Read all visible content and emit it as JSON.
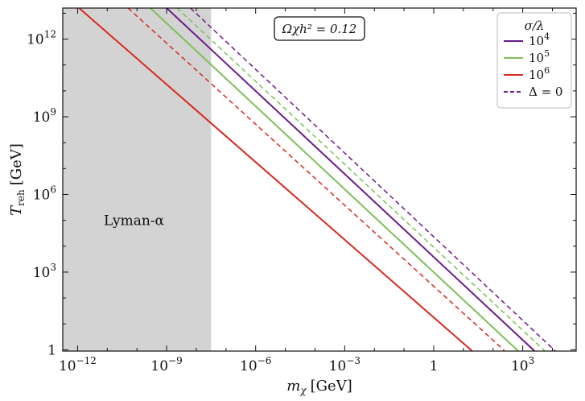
{
  "chart_data": {
    "type": "line",
    "title": "",
    "xlabel": {
      "base": "m",
      "sub": "χ",
      "unit": "[GeV]"
    },
    "ylabel": {
      "base": "T",
      "sub": "reh",
      "unit": "[GeV]"
    },
    "xscale": "log",
    "yscale": "log",
    "xlim_log10": [
      -12.5,
      4.8
    ],
    "ylim_log10": [
      -0.05,
      13.2
    ],
    "x_ticks": [
      {
        "exp": -12,
        "label": "10",
        "sup": "−12"
      },
      {
        "exp": -9,
        "label": "10",
        "sup": "−9"
      },
      {
        "exp": -6,
        "label": "10",
        "sup": "−6"
      },
      {
        "exp": -3,
        "label": "10",
        "sup": "−3"
      },
      {
        "exp": 0,
        "label": "1",
        "sup": ""
      },
      {
        "exp": 3,
        "label": "10",
        "sup": "3"
      }
    ],
    "y_ticks": [
      {
        "exp": 0,
        "label": "1",
        "sup": ""
      },
      {
        "exp": 3,
        "label": "10",
        "sup": "3"
      },
      {
        "exp": 6,
        "label": "10",
        "sup": "6"
      },
      {
        "exp": 9,
        "label": "10",
        "sup": "9"
      },
      {
        "exp": 12,
        "label": "10",
        "sup": "12"
      }
    ],
    "excluded_region": {
      "label": "Lyman-α",
      "x_log10": [
        -12.5,
        -7.5
      ],
      "color": "#d3d3d3",
      "label_at_log10": [
        -10.1,
        5.0
      ]
    },
    "annotation": "Ωχh² = 0.12",
    "legend": {
      "title": "σ/λ",
      "position": "top-right"
    },
    "series": [
      {
        "name": "10⁴",
        "label_base": "10",
        "label_sup": "4",
        "color": "#6a1b8a",
        "dash": false,
        "points_log10": [
          [
            -9.0,
            13.2
          ],
          [
            3.4,
            -0.05
          ]
        ]
      },
      {
        "name": "10⁵",
        "label_base": "10",
        "label_sup": "5",
        "color": "#7fbf5a",
        "dash": false,
        "points_log10": [
          [
            -9.55,
            13.2
          ],
          [
            2.85,
            -0.05
          ]
        ]
      },
      {
        "name": "10⁶",
        "label_base": "10",
        "label_sup": "6",
        "color": "#d62a20",
        "dash": false,
        "points_log10": [
          [
            -11.95,
            13.2
          ],
          [
            1.3,
            -0.05
          ]
        ]
      },
      {
        "name": "Δ = 0 (10⁴)",
        "color": "#6a1b8a",
        "dash": true,
        "points_log10": [
          [
            -8.2,
            13.2
          ],
          [
            4.1,
            -0.05
          ]
        ]
      },
      {
        "name": "Δ = 0 (10⁵)",
        "color": "#7fbf5a",
        "dash": true,
        "points_log10": [
          [
            -8.65,
            13.2
          ],
          [
            3.75,
            -0.05
          ]
        ]
      },
      {
        "name": "Δ = 0 (10⁶)",
        "color": "#d62a20",
        "dash": true,
        "points_log10": [
          [
            -10.3,
            13.2
          ],
          [
            2.4,
            -0.05
          ]
        ]
      }
    ],
    "legend_entries": [
      {
        "base": "10",
        "sup": "4",
        "color": "#6a1b8a",
        "dash": false
      },
      {
        "base": "10",
        "sup": "5",
        "color": "#7fbf5a",
        "dash": false
      },
      {
        "base": "10",
        "sup": "6",
        "color": "#d62a20",
        "dash": false
      },
      {
        "base": "Δ = 0",
        "sup": "",
        "color": "#6a1b8a",
        "dash": true
      }
    ]
  }
}
